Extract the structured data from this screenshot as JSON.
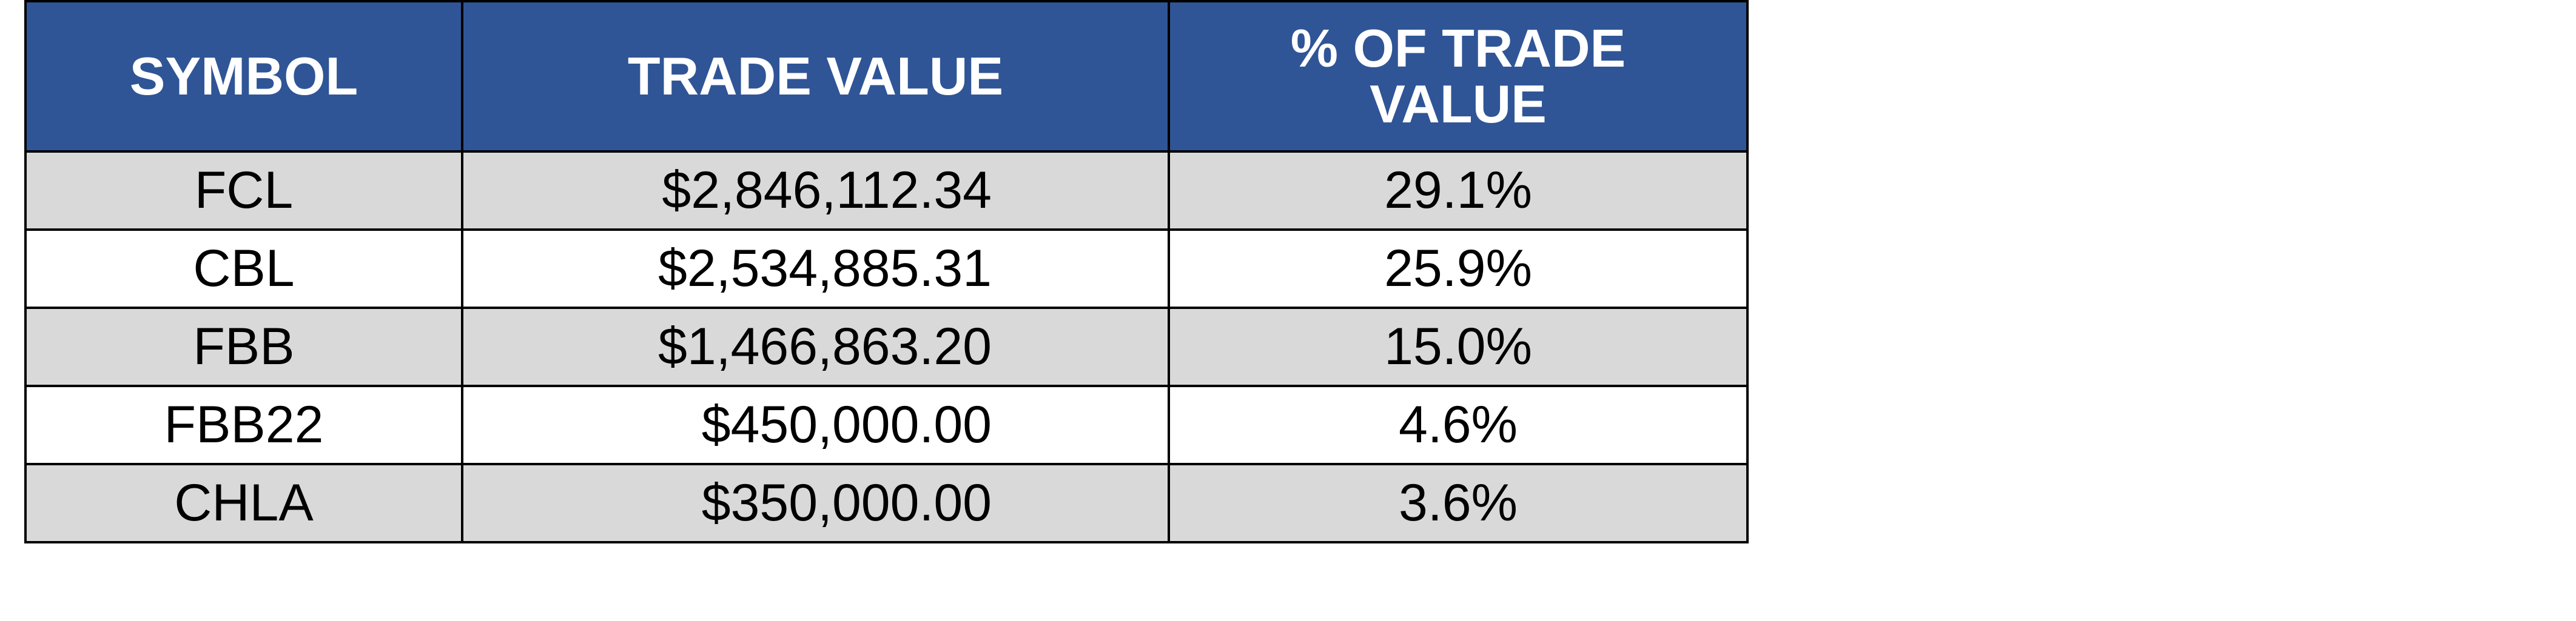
{
  "table": {
    "headers": {
      "symbol": "SYMBOL",
      "trade_value": "TRADE VALUE",
      "pct_trade_value": "% OF TRADE VALUE"
    },
    "rows": [
      {
        "symbol": "FCL",
        "trade_value": "$2,846,112.34",
        "pct": "29.1%"
      },
      {
        "symbol": "CBL",
        "trade_value": "$2,534,885.31",
        "pct": "25.9%"
      },
      {
        "symbol": "FBB",
        "trade_value": "$1,466,863.20",
        "pct": "15.0%"
      },
      {
        "symbol": "FBB22",
        "trade_value": "$450,000.00",
        "pct": "4.6%"
      },
      {
        "symbol": "CHLA",
        "trade_value": "$350,000.00",
        "pct": "3.6%"
      }
    ],
    "colors": {
      "header_bg": "#2f5597",
      "header_text": "#ffffff",
      "shaded_row": "#d9d9d9",
      "plain_row": "#ffffff",
      "border": "#000000"
    }
  }
}
